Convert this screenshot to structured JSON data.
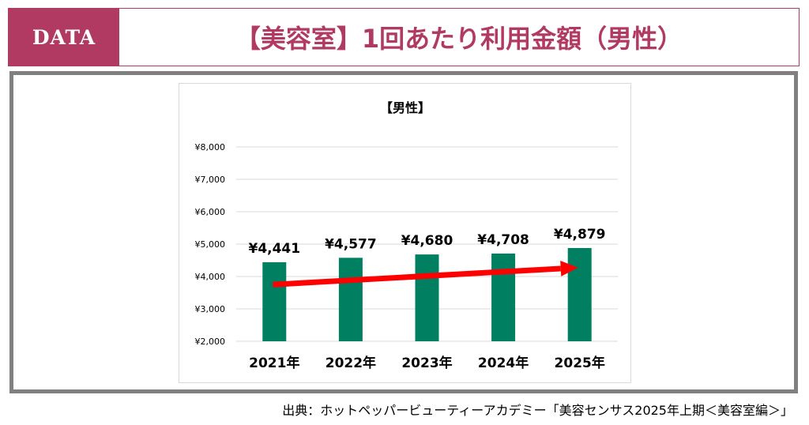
{
  "header": {
    "tag": "DATA",
    "title": "【美容室】1回あたり利用金額（男性）"
  },
  "source": "出典：ホットペッパービューティーアカデミー「美容センサス2025年上期＜美容室編＞」",
  "colors": {
    "accent": "#b03a62",
    "bar": "#008060",
    "arrow": "#ff0000",
    "frame": "#808080"
  },
  "chart_data": {
    "type": "bar",
    "title": "【男性】",
    "categories": [
      "2021年",
      "2022年",
      "2023年",
      "2024年",
      "2025年"
    ],
    "values": [
      4441,
      4577,
      4680,
      4708,
      4879
    ],
    "value_labels": [
      "¥4,441",
      "¥4,577",
      "¥4,680",
      "¥4,708",
      "¥4,879"
    ],
    "yticks": [
      2000,
      3000,
      4000,
      5000,
      6000,
      7000,
      8000
    ],
    "ytick_labels": [
      "¥2,000",
      "¥3,000",
      "¥4,000",
      "¥5,000",
      "¥6,000",
      "¥7,000",
      "¥8,000"
    ],
    "ylim": [
      2000,
      8000
    ],
    "grid": true,
    "annotation": "red trend arrow pointing upward from 2021 to 2025"
  }
}
